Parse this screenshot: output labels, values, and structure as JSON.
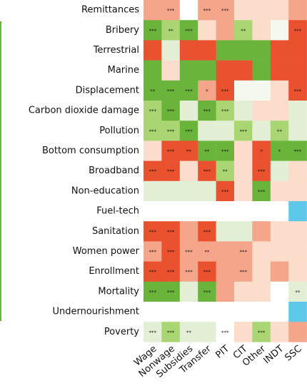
{
  "chart_data": {
    "type": "heatmap",
    "columns": [
      "Wage",
      "Nonwage",
      "Subsidies",
      "Transfer",
      "PIT",
      "CIT",
      "Other",
      "INDT",
      "SSC"
    ],
    "rows": [
      {
        "name": "Remittances",
        "colors": [
          "#f4a58a",
          "#f4a58a",
          "#ffffff",
          "#f4a58a",
          "#f4a58a",
          "#fcdccb",
          "#fcdccb",
          "#fcdccb",
          "#f4a58a"
        ],
        "stars": [
          null,
          "***",
          null,
          "***",
          "***",
          null,
          null,
          null,
          null
        ]
      },
      {
        "name": "Bribery",
        "colors": [
          "#6ab43c",
          "#a9d672",
          "#6ab43c",
          "#fcdccb",
          "#f4a58a",
          "#a9d672",
          "#fcdccb",
          "#f4f8ef",
          "#e9512f"
        ],
        "stars": [
          "***",
          "**",
          "***",
          null,
          null,
          "**",
          null,
          null,
          "***"
        ]
      },
      {
        "name": "Terrestrial",
        "colors": [
          "#e9512f",
          "#e3efd5",
          "#e9512f",
          "#e9512f",
          "#6ab43c",
          "#6ab43c",
          "#6ab43c",
          "#e9512f",
          "#e9512f"
        ],
        "stars": [
          null,
          null,
          null,
          null,
          null,
          null,
          null,
          null,
          null
        ]
      },
      {
        "name": "Marine",
        "colors": [
          "#6ab43c",
          "#fcdccb",
          "#6ab43c",
          "#6ab43c",
          "#e9512f",
          "#e9512f",
          "#6ab43c",
          "#e9512f",
          "#e9512f"
        ],
        "stars": [
          null,
          null,
          null,
          null,
          null,
          null,
          null,
          null,
          null
        ]
      },
      {
        "name": "Displacement",
        "colors": [
          "#6ab43c",
          "#6ab43c",
          "#6ab43c",
          "#f4a58a",
          "#e9512f",
          "#f4f8ef",
          "#f4f8ef",
          "#fcdccb",
          "#e9512f"
        ],
        "stars": [
          "**",
          "***",
          "***",
          "*",
          "***",
          null,
          null,
          null,
          "***"
        ]
      },
      {
        "name": "Carbon dioxide damage",
        "colors": [
          "#a9d672",
          "#6ab43c",
          "#e3efd5",
          "#6ab43c",
          "#a9d672",
          "#e3efd5",
          "#fcdccb",
          "#fcdccb",
          "#e3efd5"
        ],
        "stars": [
          "***",
          "***",
          null,
          "***",
          "***",
          null,
          null,
          null,
          null
        ]
      },
      {
        "name": "Pollution",
        "colors": [
          "#a9d672",
          "#a9d672",
          "#6ab43c",
          "#e3efd5",
          "#e3efd5",
          "#a9d672",
          "#e3efd5",
          "#a9d672",
          "#e3efd5"
        ],
        "stars": [
          "***",
          "***",
          "***",
          null,
          null,
          "***",
          null,
          "**",
          null
        ]
      },
      {
        "name": "Bottom consumption",
        "colors": [
          "#fcdccb",
          "#e9512f",
          "#e9512f",
          "#6ab43c",
          "#6ab43c",
          "#fcdccb",
          "#e9512f",
          "#6ab43c",
          "#6ab43c"
        ],
        "stars": [
          null,
          "***",
          "**",
          "**",
          "***",
          null,
          "*",
          "*",
          "***"
        ]
      },
      {
        "name": "Broadband",
        "colors": [
          "#e9512f",
          "#e9512f",
          "#fcdccb",
          "#e9512f",
          "#a9d672",
          "#fcdccb",
          "#e9512f",
          "#e3efd5",
          "#fcdccb"
        ],
        "stars": [
          "***",
          "***",
          null,
          "***",
          "**",
          null,
          "***",
          null,
          null
        ]
      },
      {
        "name": "Non-education",
        "colors": [
          "#e3efd5",
          "#e3efd5",
          "#e3efd5",
          "#e3efd5",
          "#e9512f",
          "#fcdccb",
          "#6ab43c",
          "#fcdccb",
          "#fcdccb"
        ],
        "stars": [
          null,
          null,
          null,
          null,
          "***",
          null,
          "***",
          null,
          null
        ]
      },
      {
        "name": "Fuel-tech",
        "colors": [
          "#ffffff",
          "#ffffff",
          "#ffffff",
          "#ffffff",
          "#ffffff",
          "#ffffff",
          "#ffffff",
          "#ffffff",
          "#5ec8ea"
        ],
        "stars": [
          null,
          null,
          null,
          null,
          null,
          null,
          null,
          null,
          null
        ]
      },
      {
        "name": "Sanitation",
        "colors": [
          "#e9512f",
          "#e9512f",
          "#f4a58a",
          "#e9512f",
          "#e3efd5",
          "#e3efd5",
          "#f4a58a",
          "#fcdccb",
          "#fcdccb"
        ],
        "stars": [
          "***",
          "***",
          null,
          "***",
          null,
          null,
          null,
          null,
          null
        ]
      },
      {
        "name": "Women power",
        "colors": [
          "#f4a58a",
          "#e9512f",
          "#f4a58a",
          "#f4a58a",
          "#f4a58a",
          "#f4a58a",
          "#fcdccb",
          "#fcdccb",
          "#fcdccb"
        ],
        "stars": [
          "***",
          "***",
          "***",
          "**",
          null,
          "***",
          null,
          null,
          null
        ]
      },
      {
        "name": "Enrollment",
        "colors": [
          "#e9512f",
          "#e9512f",
          "#f4a58a",
          "#e9512f",
          "#f4a58a",
          "#f4a58a",
          "#fcdccb",
          "#f4a58a",
          "#fcdccb"
        ],
        "stars": [
          "***",
          "***",
          "***",
          "***",
          null,
          "***",
          null,
          null,
          null
        ]
      },
      {
        "name": "Mortality",
        "colors": [
          "#6ab43c",
          "#6ab43c",
          "#e3efd5",
          "#6ab43c",
          "#f4a58a",
          "#fcdccb",
          "#fcdccb",
          "#ffffff",
          "#e3efd5"
        ],
        "stars": [
          "***",
          "***",
          null,
          "***",
          null,
          null,
          null,
          null,
          "**"
        ]
      },
      {
        "name": "Undernourishment",
        "colors": [
          "#ffffff",
          "#ffffff",
          "#ffffff",
          "#ffffff",
          "#ffffff",
          "#ffffff",
          "#ffffff",
          "#ffffff",
          "#5ec8ea"
        ],
        "stars": [
          null,
          null,
          null,
          null,
          null,
          null,
          null,
          null,
          null
        ]
      },
      {
        "name": "Poverty",
        "colors": [
          "#e3efd5",
          "#a9d672",
          "#e3efd5",
          "#e3efd5",
          "#ffffff",
          "#fcdccb",
          "#a9d672",
          "#fcdccb",
          "#f4a58a"
        ],
        "stars": [
          "***",
          "***",
          "**",
          null,
          "***",
          null,
          "***",
          null,
          null
        ]
      }
    ]
  }
}
